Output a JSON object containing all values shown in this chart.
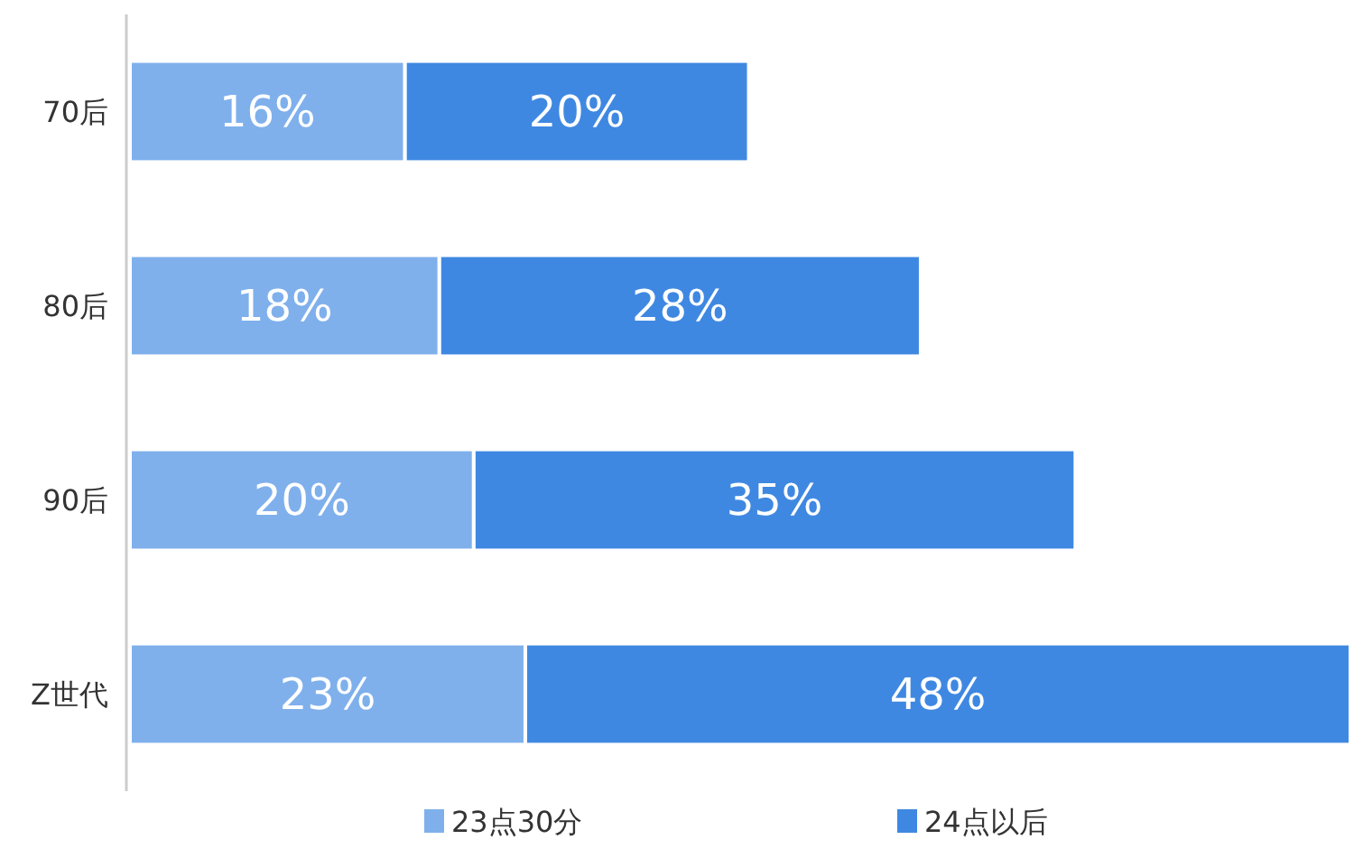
{
  "chart_data": {
    "type": "bar",
    "orientation": "horizontal",
    "stacked": true,
    "legend": "bottom",
    "categories": [
      "70后",
      "80后",
      "90后",
      "Z世代"
    ],
    "series": [
      {
        "name": "23点30分",
        "color": "#7fb0ec",
        "values": [
          16,
          18,
          20,
          23
        ],
        "value_labels": [
          "16%",
          "18%",
          "20%",
          "23%"
        ]
      },
      {
        "name": "24点以后",
        "color": "#3f88e2",
        "values": [
          20,
          28,
          35,
          48
        ],
        "value_labels": [
          "20%",
          "28%",
          "35%",
          "48%"
        ]
      }
    ]
  }
}
